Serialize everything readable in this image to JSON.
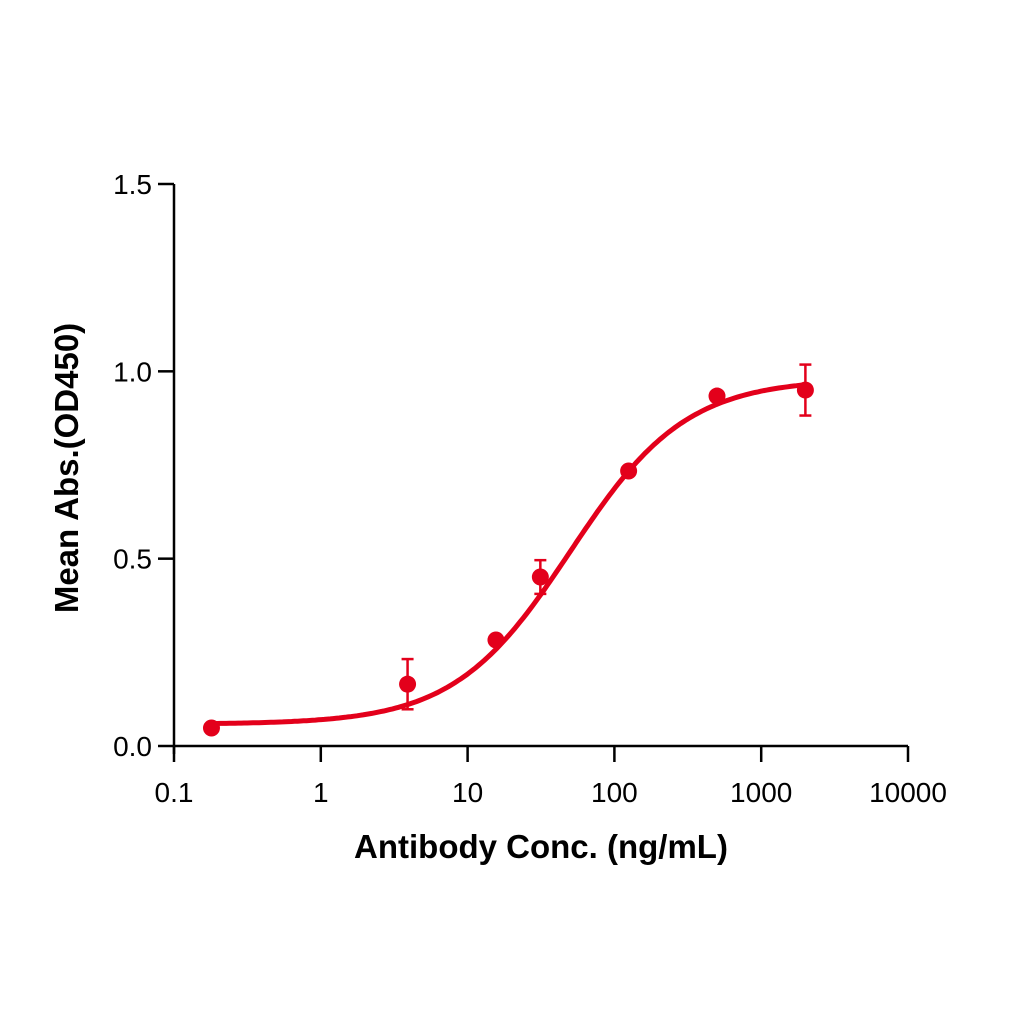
{
  "chart_data": {
    "type": "scatter",
    "title": "",
    "xlabel": "Antibody Conc. (ng/mL)",
    "ylabel": "Mean Abs.(OD450)",
    "xscale": "log",
    "xlim": [
      0.1,
      10000
    ],
    "ylim": [
      0.0,
      1.5
    ],
    "xticks": [
      "0.1",
      "1",
      "10",
      "100",
      "1000",
      "10000"
    ],
    "yticks": [
      "0.0",
      "0.5",
      "1.0",
      "1.5"
    ],
    "grid": false,
    "legend": null,
    "color": "#e3001b",
    "series": [
      {
        "name": "Mean Abs.",
        "x": [
          0.18,
          3.9,
          15.6,
          31.3,
          125,
          500,
          2000
        ],
        "y": [
          0.048,
          0.165,
          0.283,
          0.451,
          0.734,
          0.934,
          0.95
        ],
        "error": [
          0.0,
          0.067,
          0.0,
          0.045,
          0.0,
          0.0,
          0.068
        ]
      }
    ],
    "fit": {
      "type": "4PL",
      "bottom": 0.058,
      "top": 0.98,
      "ec50": 50,
      "hill": 1.1
    }
  }
}
